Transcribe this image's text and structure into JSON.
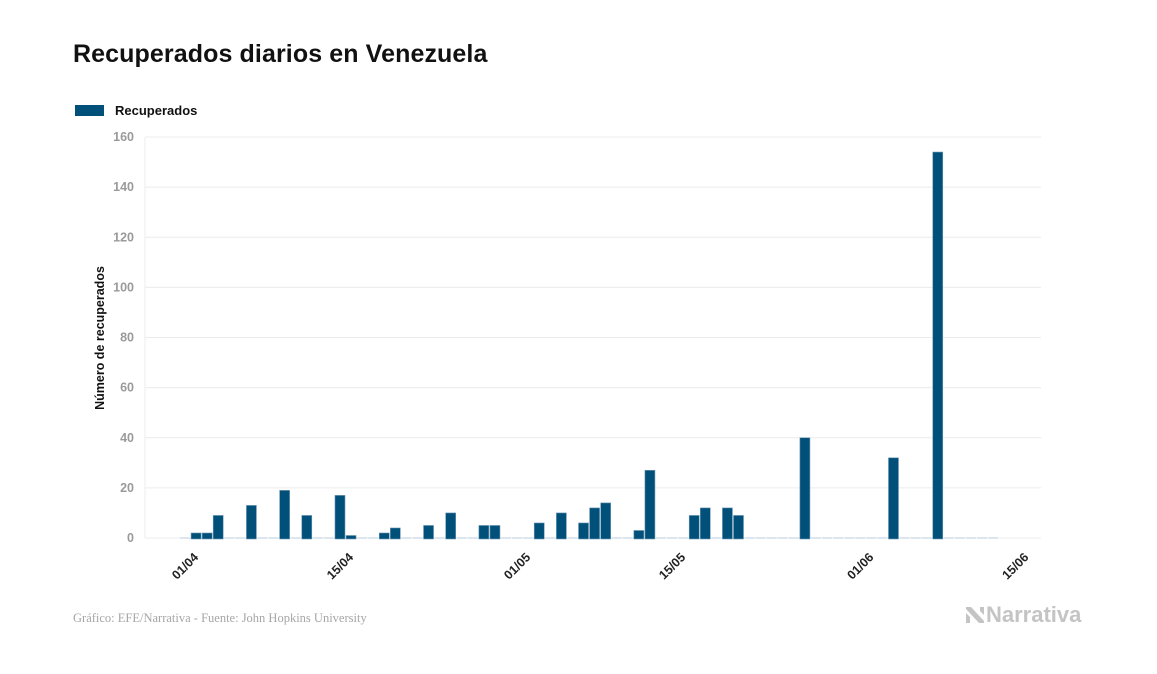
{
  "chart_data": {
    "type": "bar",
    "title": "Recuperados diarios en Venezuela",
    "xlabel": "",
    "ylabel": "Número de recuperados",
    "ylim": [
      0,
      160
    ],
    "yticks": [
      0,
      20,
      40,
      60,
      80,
      100,
      120,
      140,
      160
    ],
    "grid": true,
    "legend_position": "top-left",
    "start_date": "31/03",
    "xtick_labels": [
      {
        "label": "01/04",
        "index": 1
      },
      {
        "label": "15/04",
        "index": 15
      },
      {
        "label": "01/05",
        "index": 31
      },
      {
        "label": "15/05",
        "index": 45
      },
      {
        "label": "01/06",
        "index": 62
      },
      {
        "label": "15/06",
        "index": 76
      }
    ],
    "x_range_days": [
      -3,
      77
    ],
    "series": [
      {
        "name": "Recuperados",
        "color": "#00507a",
        "values": [
          0,
          2,
          2,
          9,
          0,
          0,
          13,
          0,
          0,
          19,
          0,
          9,
          0,
          0,
          17,
          1,
          0,
          0,
          2,
          4,
          0,
          0,
          5,
          0,
          10,
          0,
          0,
          5,
          5,
          0,
          0,
          0,
          6,
          0,
          10,
          0,
          6,
          12,
          14,
          0,
          0,
          3,
          27,
          0,
          0,
          0,
          9,
          12,
          0,
          12,
          9,
          0,
          0,
          0,
          0,
          0,
          40,
          0,
          0,
          0,
          0,
          0,
          0,
          0,
          32,
          0,
          0,
          0,
          154,
          0,
          0,
          0,
          0,
          0
        ]
      }
    ]
  },
  "footer": {
    "source": "Gráfico: EFE/Narrativa - Fuente: John Hopkins University",
    "brand": "Narrativa"
  },
  "colors": {
    "bar": "#00507a",
    "zero_marker": "#dde6ee",
    "grid": "#ececec",
    "brand": "#c4c4c4"
  }
}
